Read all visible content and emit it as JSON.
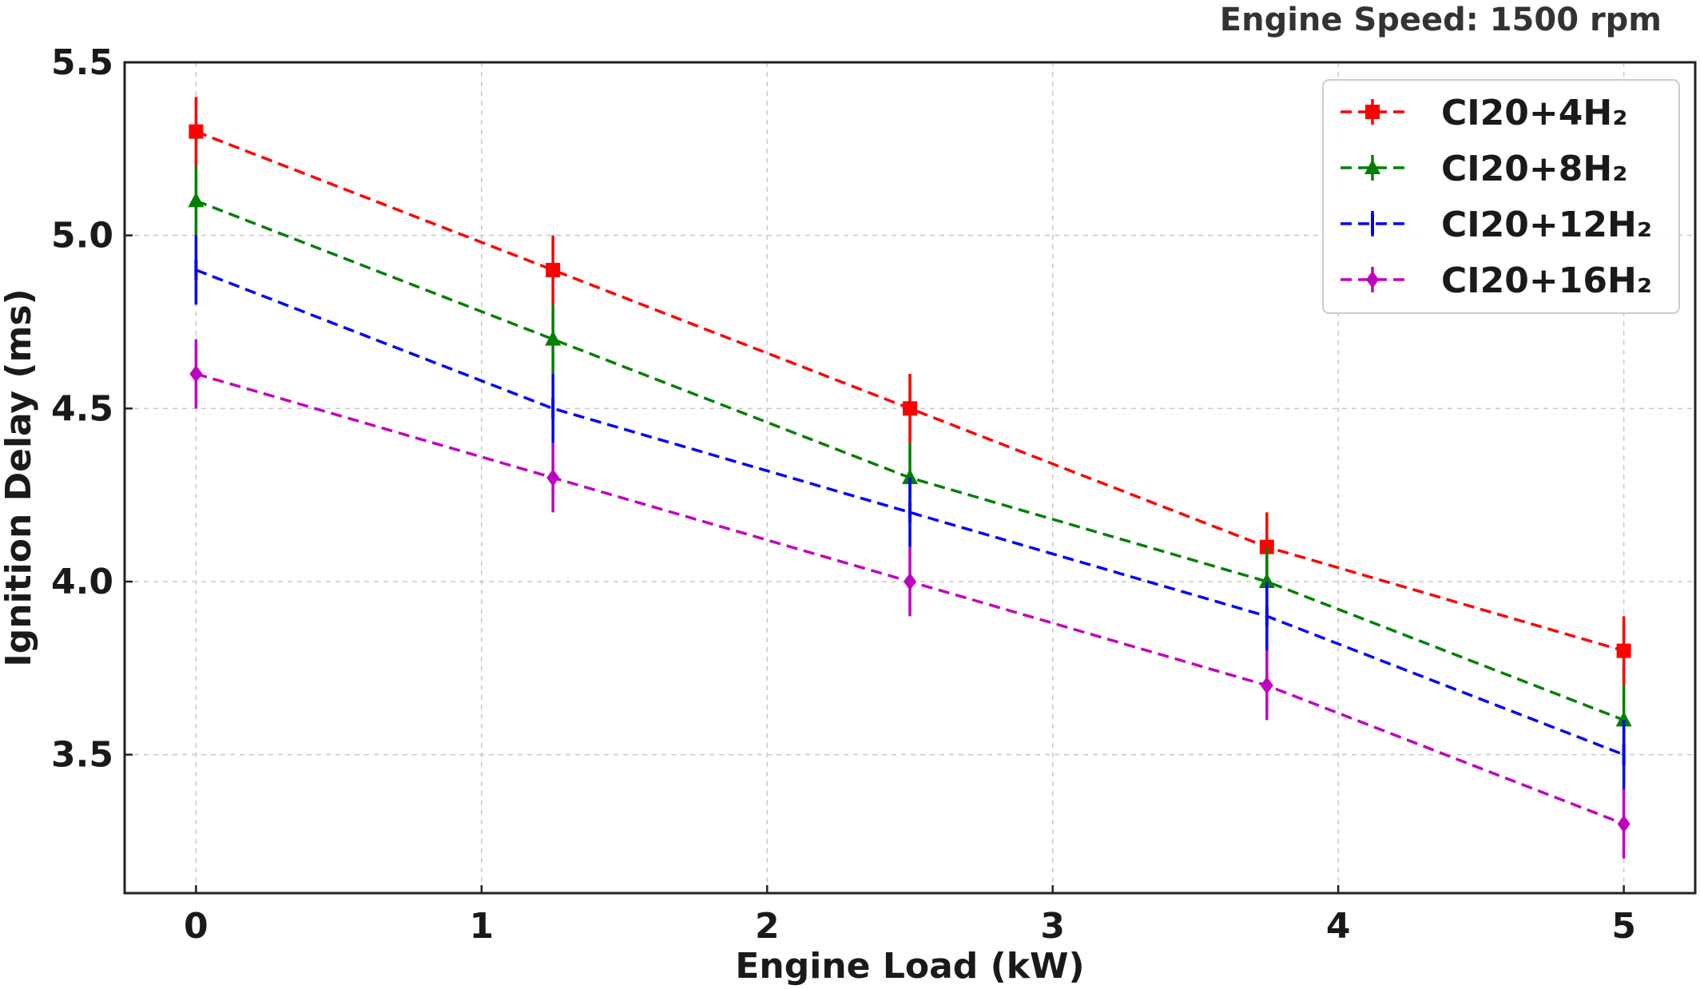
{
  "chart_data": {
    "type": "line",
    "title": "Engine Speed: 1500 rpm",
    "xlabel": "Engine Load (kW)",
    "ylabel": "Ignition Delay (ms)",
    "xlim": [
      -0.25,
      5.25
    ],
    "ylim": [
      3.1,
      5.5
    ],
    "xticks": [
      0,
      1,
      2,
      3,
      4,
      5
    ],
    "xtick_labels": [
      "0",
      "1",
      "2",
      "3",
      "4",
      "5"
    ],
    "yticks": [
      3.5,
      4.0,
      4.5,
      5.0,
      5.5
    ],
    "ytick_labels": [
      "3.5",
      "4.0",
      "4.5",
      "5.0",
      "5.5"
    ],
    "grid": true,
    "legend_position": "top-right",
    "x": [
      0,
      1.25,
      2.5,
      3.75,
      5
    ],
    "series": [
      {
        "name": "CI20+4H₂",
        "color": "#ff0000",
        "marker": "square",
        "values": [
          5.3,
          4.9,
          4.5,
          4.1,
          3.8
        ],
        "error": 0.1
      },
      {
        "name": "CI20+8H₂",
        "color": "#008000",
        "marker": "triangle",
        "values": [
          5.1,
          4.7,
          4.3,
          4.0,
          3.6
        ],
        "error": 0.1
      },
      {
        "name": "CI20+12H₂",
        "color": "#0000ff",
        "marker": "vline",
        "values": [
          4.9,
          4.5,
          4.2,
          3.9,
          3.5
        ],
        "error": 0.1
      },
      {
        "name": "CI20+16H₂",
        "color": "#c000c0",
        "marker": "diamond",
        "values": [
          4.6,
          4.3,
          4.0,
          3.7,
          3.3
        ],
        "error": 0.1
      }
    ]
  }
}
